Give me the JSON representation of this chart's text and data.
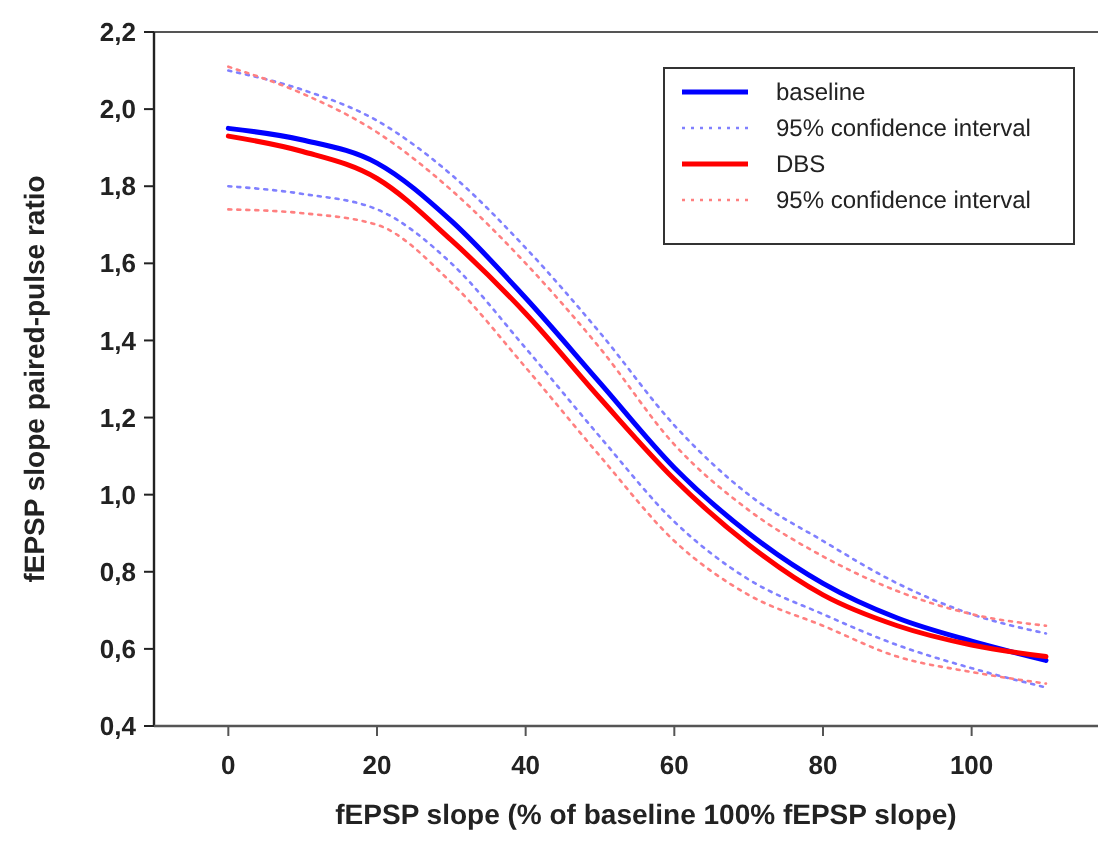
{
  "chart_data": {
    "type": "line",
    "xlabel": "fEPSP slope (% of baseline 100% fEPSP slope)",
    "ylabel": "fEPSP slope paired-pulse ratio",
    "x": [
      0,
      10,
      20,
      30,
      40,
      50,
      60,
      70,
      80,
      90,
      100,
      110
    ],
    "series": [
      {
        "name": "baseline",
        "color": "#0000ff",
        "line_style": "solid",
        "values": [
          1.95,
          1.92,
          1.86,
          1.71,
          1.51,
          1.29,
          1.07,
          0.9,
          0.77,
          0.68,
          0.62,
          0.57
        ]
      },
      {
        "name": "95% confidence interval",
        "color": "#8080ff",
        "line_style": "dotted",
        "values": [
          2.1,
          2.05,
          1.97,
          1.83,
          1.64,
          1.42,
          1.18,
          1.0,
          0.88,
          0.77,
          0.69,
          0.64
        ]
      },
      {
        "color": "#8080ff",
        "line_style": "dotted",
        "values": [
          1.8,
          1.78,
          1.74,
          1.6,
          1.38,
          1.15,
          0.93,
          0.78,
          0.69,
          0.61,
          0.55,
          0.5
        ]
      },
      {
        "name": "DBS",
        "color": "#ff0000",
        "line_style": "solid",
        "values": [
          1.93,
          1.89,
          1.82,
          1.66,
          1.47,
          1.25,
          1.04,
          0.87,
          0.74,
          0.66,
          0.61,
          0.58
        ]
      },
      {
        "name": "95% confidence interval",
        "color": "#ff8080",
        "line_style": "dotted",
        "values": [
          2.11,
          2.04,
          1.94,
          1.79,
          1.6,
          1.38,
          1.13,
          0.96,
          0.84,
          0.75,
          0.69,
          0.66
        ]
      },
      {
        "color": "#ff8080",
        "line_style": "dotted",
        "values": [
          1.74,
          1.73,
          1.7,
          1.55,
          1.33,
          1.1,
          0.88,
          0.74,
          0.66,
          0.58,
          0.54,
          0.51
        ]
      }
    ],
    "xlim": [
      -10,
      117
    ],
    "xticks": [
      0,
      20,
      40,
      60,
      80,
      100
    ],
    "ylim": [
      0.4,
      2.2
    ],
    "yticks": [
      {
        "value": 0.4,
        "label": "0,4"
      },
      {
        "value": 0.6,
        "label": "0,6"
      },
      {
        "value": 0.8,
        "label": "0,8"
      },
      {
        "value": 1.0,
        "label": "1,0"
      },
      {
        "value": 1.2,
        "label": "1,2"
      },
      {
        "value": 1.4,
        "label": "1,4"
      },
      {
        "value": 1.6,
        "label": "1,6"
      },
      {
        "value": 1.8,
        "label": "1,8"
      },
      {
        "value": 2.0,
        "label": "2,0"
      },
      {
        "value": 2.2,
        "label": "2,2"
      }
    ],
    "legend": "top right",
    "marker": "none"
  }
}
